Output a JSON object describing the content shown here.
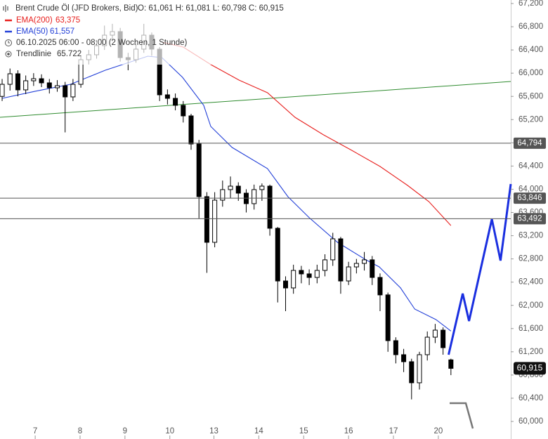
{
  "chart_data": {
    "type": "candlestick",
    "legend": {
      "title": "Brent Crude Öl (JFD Brokers, Bid)",
      "ohlc": "O: 61,061  H: 61,081  L: 60,798  C: 60,915",
      "ema200": "EMA(200)",
      "ema200_value": "63,375",
      "ema50": "EMA(50)",
      "ema50_value": "61,557",
      "period": "06.10.2025 06:00 - 08:00  (2 Wochen, 1 Stunde)",
      "trend": "Trendlinie",
      "trend_value": "65.722"
    },
    "xlim": [
      -0.27,
      64.6
    ],
    "xticks": [
      {
        "value": 4.2,
        "label": "7"
      },
      {
        "value": 9.9,
        "label": "8"
      },
      {
        "value": 15.6,
        "label": "9"
      },
      {
        "value": 21.3,
        "label": "10"
      },
      {
        "value": 26.9,
        "label": "13"
      },
      {
        "value": 32.6,
        "label": "14"
      },
      {
        "value": 38.3,
        "label": "15"
      },
      {
        "value": 44.0,
        "label": "16"
      },
      {
        "value": 49.7,
        "label": "17"
      },
      {
        "value": 55.4,
        "label": "20"
      }
    ],
    "ylim": [
      60000,
      67200
    ],
    "yticks": [
      {
        "value": 60000,
        "label": "60,000"
      },
      {
        "value": 60400,
        "label": "60,400"
      },
      {
        "value": 60800,
        "label": "60,800"
      },
      {
        "value": 61200,
        "label": "61,200"
      },
      {
        "value": 61600,
        "label": "61,600"
      },
      {
        "value": 62000,
        "label": "62,000"
      },
      {
        "value": 62400,
        "label": "62,400"
      },
      {
        "value": 62800,
        "label": "62,800"
      },
      {
        "value": 63200,
        "label": "63,200"
      },
      {
        "value": 63600,
        "label": "63,600"
      },
      {
        "value": 64000,
        "label": "64,000"
      },
      {
        "value": 64400,
        "label": "64,400"
      },
      {
        "value": 64800,
        "label": "64,800"
      },
      {
        "value": 65200,
        "label": "65,200"
      },
      {
        "value": 65600,
        "label": "65,600"
      },
      {
        "value": 66000,
        "label": "66,000"
      },
      {
        "value": 66400,
        "label": "66,400"
      },
      {
        "value": 66800,
        "label": "66,800"
      },
      {
        "value": 67200,
        "label": "67,200"
      }
    ],
    "candles": {
      "color": "#000000",
      "open": [
        65600,
        65808,
        65990,
        65712,
        65869,
        65905,
        65833,
        65748,
        65784,
        65591,
        65808,
        66232,
        66317,
        66474,
        66655,
        66716,
        66268,
        66232,
        66414,
        66655,
        66414,
        65627,
        65566,
        65446,
        65264,
        64780,
        63873,
        63086,
        63812,
        63994,
        64054,
        63933,
        63752,
        63994,
        64054,
        63328,
        62420,
        62300,
        62602,
        62542,
        62481,
        62602,
        62784,
        63146,
        62420,
        62662,
        62723,
        62784,
        62481,
        62180,
        61392,
        61150,
        61029,
        60666,
        61150,
        61452,
        61573,
        61061
      ],
      "high": [
        65900,
        66080,
        66050,
        65960,
        66000,
        65980,
        65900,
        65880,
        65850,
        65900,
        66300,
        66400,
        66560,
        66820,
        66850,
        66780,
        66350,
        66500,
        66850,
        66700,
        66450,
        65720,
        65650,
        65520,
        65300,
        64850,
        63950,
        63950,
        64150,
        64220,
        64120,
        64000,
        64080,
        64100,
        64080,
        63350,
        62500,
        62700,
        62680,
        62620,
        62700,
        62880,
        63250,
        63180,
        62750,
        62800,
        62920,
        62850,
        62550,
        62220,
        61450,
        61250,
        61080,
        61200,
        61550,
        61680,
        61620,
        61081
      ],
      "low": [
        65520,
        65700,
        65600,
        65640,
        65780,
        65760,
        65650,
        65680,
        64980,
        65520,
        65750,
        66150,
        66250,
        66400,
        66550,
        66200,
        66050,
        66180,
        66350,
        66300,
        65520,
        65460,
        65360,
        65150,
        64680,
        63500,
        62560,
        63000,
        63700,
        63850,
        63800,
        63600,
        63650,
        63800,
        63200,
        62050,
        61900,
        62200,
        62380,
        62350,
        62380,
        62500,
        62680,
        62200,
        62350,
        62550,
        62600,
        62350,
        61900,
        61200,
        61000,
        60850,
        60380,
        60550,
        61050,
        61350,
        61150,
        60798
      ],
      "close": [
        65808,
        65990,
        65712,
        65869,
        65905,
        65833,
        65748,
        65784,
        65591,
        65808,
        66232,
        66317,
        66474,
        66655,
        66716,
        66268,
        66232,
        66414,
        66655,
        66414,
        65627,
        65566,
        65446,
        65264,
        64780,
        63873,
        63086,
        63812,
        63994,
        64054,
        63933,
        63752,
        63994,
        64054,
        63328,
        62420,
        62300,
        62602,
        62542,
        62481,
        62602,
        62784,
        63146,
        62420,
        62662,
        62723,
        62784,
        62481,
        62180,
        61392,
        61150,
        61029,
        60666,
        61150,
        61452,
        61573,
        61271,
        60915
      ]
    },
    "series": [
      {
        "name": "EMA(200)",
        "color": "#e8201e",
        "x": [
          20.3,
          23.0,
          26.5,
          30.1,
          33.7,
          37.2,
          40.8,
          44.4,
          48.0,
          51.5,
          54.2,
          57.0
        ],
        "values": [
          66534,
          66450,
          66148,
          65880,
          65663,
          65240,
          64938,
          64671,
          64393,
          64066,
          63788,
          63375
        ]
      },
      {
        "name": "EMA(50)",
        "color": "#2340d8",
        "x": [
          0,
          4.2,
          8.7,
          13.1,
          15.8,
          18.5,
          20.3,
          22.9,
          25.6,
          26.5,
          29.2,
          33.7,
          36.3,
          39.0,
          42.6,
          46.2,
          47.9,
          50.6,
          52.4,
          55.1,
          57.0
        ],
        "values": [
          65566,
          65688,
          65808,
          66050,
          66172,
          66292,
          66268,
          65930,
          65446,
          65082,
          64720,
          64356,
          63872,
          63510,
          63086,
          62784,
          62662,
          62300,
          61936,
          61755,
          61557
        ]
      },
      {
        "name": "Trendlinie",
        "color": "#2e8b2e",
        "x": [
          -0.27,
          64.6
        ],
        "values": [
          65240,
          65857
        ]
      },
      {
        "name": "Prognose",
        "color": "#1a2fe0",
        "x": [
          56.7,
          58.5,
          59.3,
          62.2,
          63.3,
          64.6
        ],
        "values": [
          61150,
          62203,
          61731,
          63485,
          62771,
          64090
        ]
      }
    ],
    "levels": {
      "color": "#555555",
      "values": [
        64794,
        63846,
        63492
      ],
      "value_labels": [
        "64,794",
        "63,846",
        "63,492"
      ]
    },
    "last_price": {
      "value": 60915,
      "label": "60,915",
      "color": "#111111"
    }
  }
}
